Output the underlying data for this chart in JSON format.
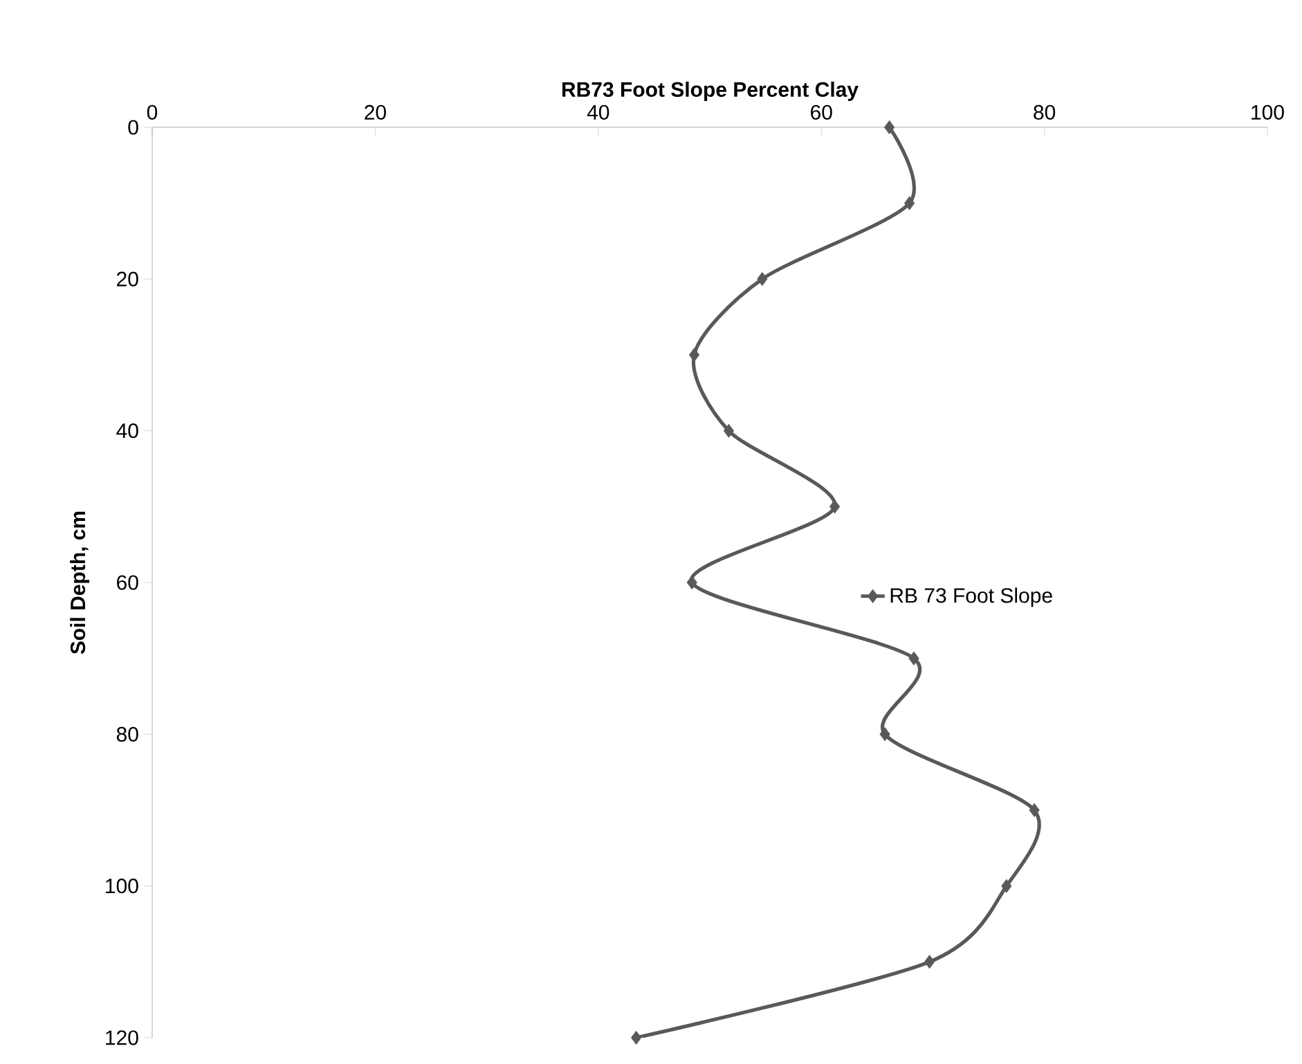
{
  "chart_data": {
    "type": "line",
    "xlabel": "RB73 Foot Slope Percent Clay",
    "ylabel": "Soil Depth, cm",
    "xlim": [
      0,
      100
    ],
    "xticks": [
      0,
      20,
      40,
      60,
      80,
      100
    ],
    "ylim": [
      120,
      0
    ],
    "yticks": [
      0,
      20,
      40,
      60,
      80,
      100,
      120
    ],
    "series": [
      {
        "name": "RB 73 Foot Slope",
        "color": "#595959",
        "x": [
          66.1,
          67.9,
          54.7,
          48.6,
          51.7,
          61.2,
          48.4,
          68.3,
          65.7,
          79.1,
          76.6,
          69.7,
          43.4
        ],
        "values": [
          0,
          10,
          20,
          30,
          40,
          50,
          60,
          70,
          80,
          90,
          100,
          110,
          120
        ]
      }
    ],
    "marker": "diamond",
    "line_style": "solid",
    "grid": false,
    "legend": "right"
  }
}
